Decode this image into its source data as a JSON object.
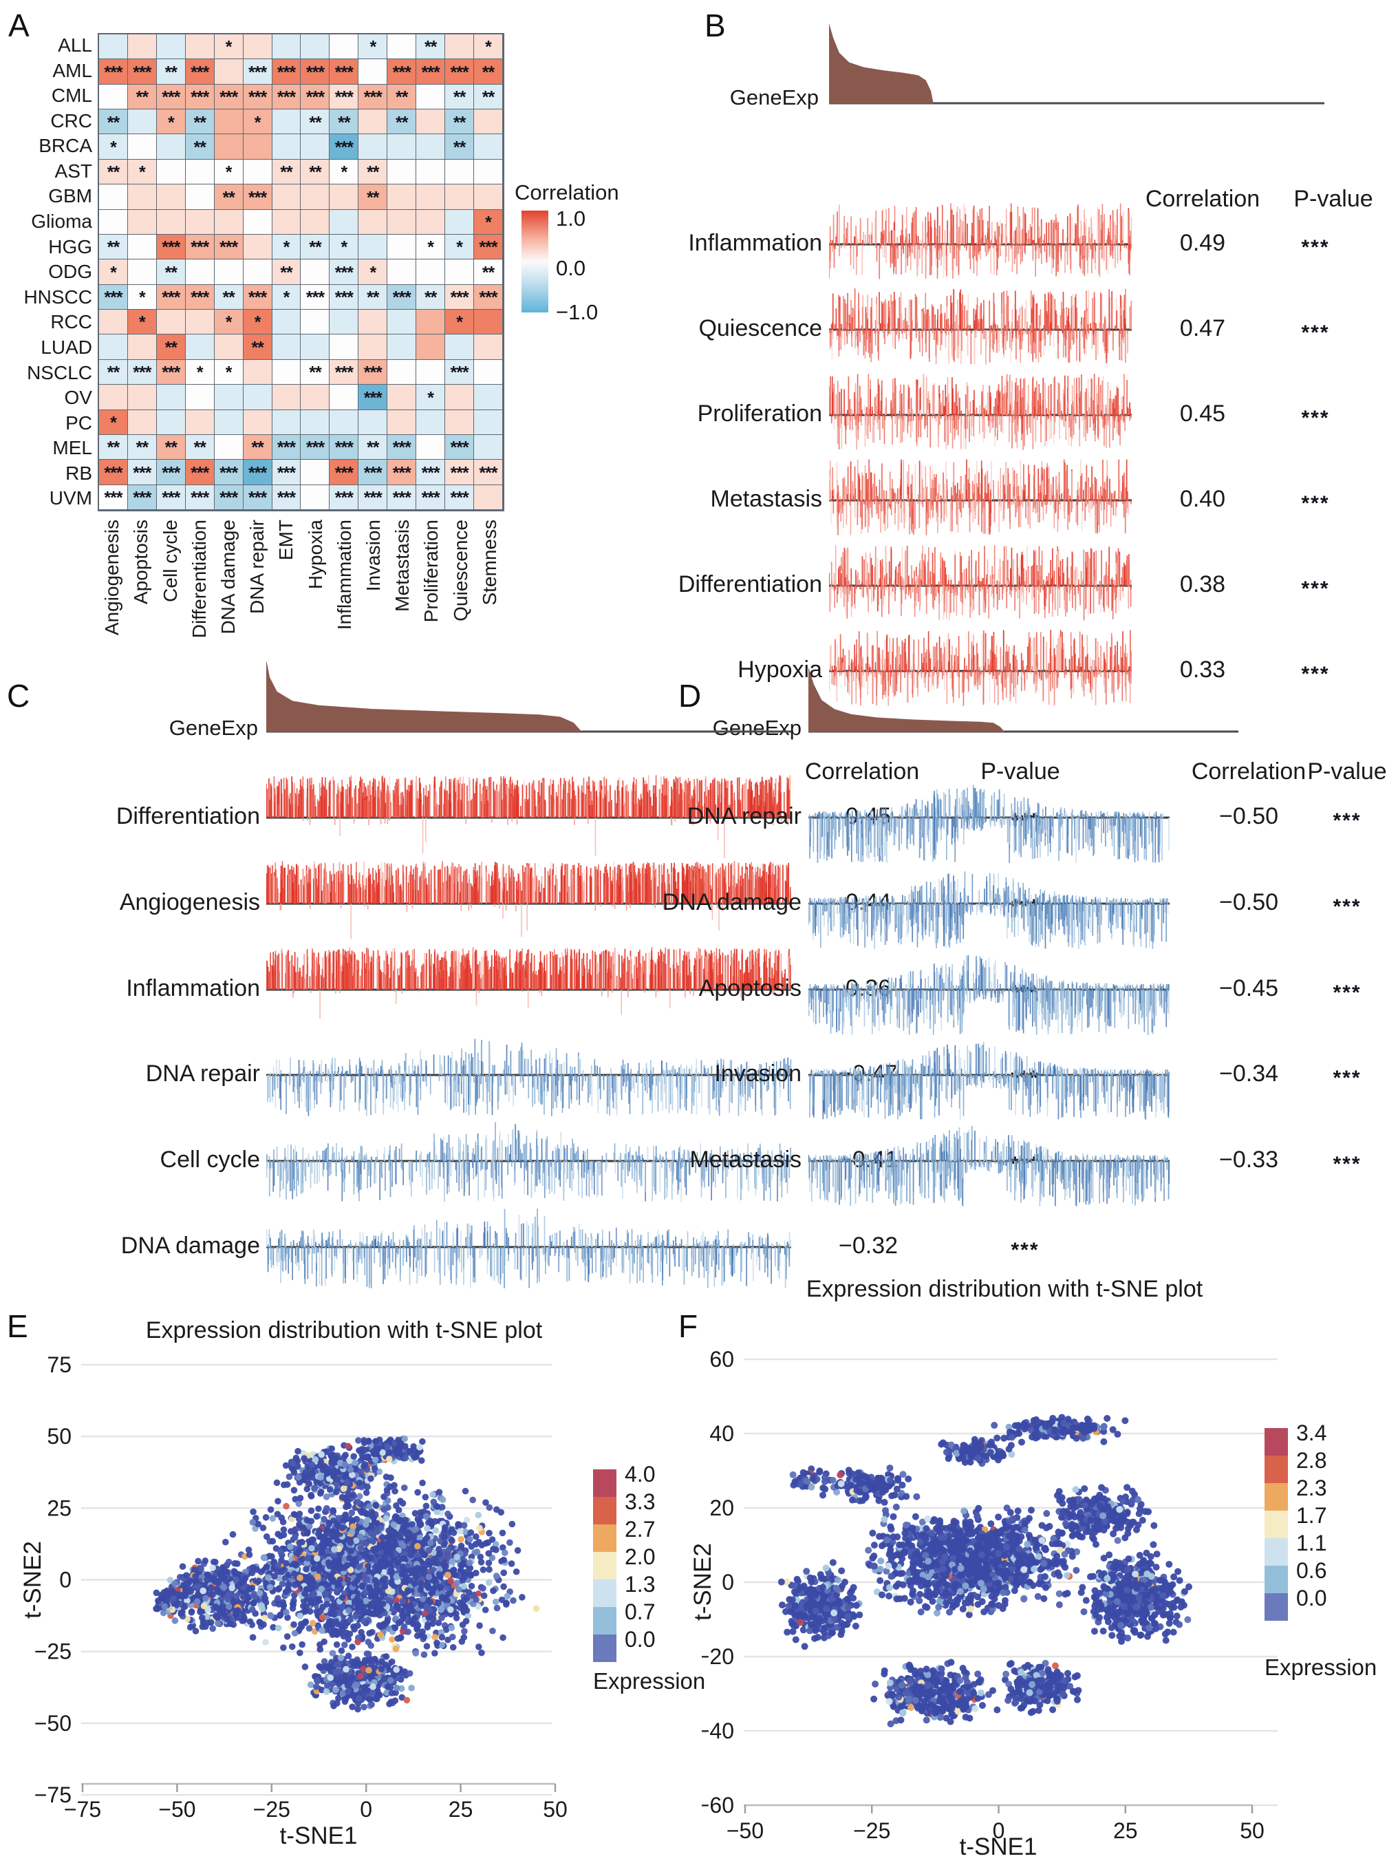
{
  "figure": {
    "panel_letters": [
      "A",
      "B",
      "C",
      "D",
      "E",
      "F"
    ]
  },
  "chart_data": {
    "A": {
      "type": "heatmap",
      "legend": {
        "title": "Correlation",
        "max": "1.0",
        "mid": "0.0",
        "min": "−1.0"
      },
      "significance_codes": [
        "*",
        "**",
        "***"
      ],
      "cell_categories": {
        "sr": "strong positive",
        "mr": "moderate positive",
        "lr": "weak positive",
        "w": "near zero",
        "lb": "weak negative",
        "mb": "moderate negative",
        "sb": "strong negative"
      },
      "cell_colors": {
        "sr": "#ef8063",
        "mr": "#f6b39d",
        "lr": "#fbded4",
        "w": "#fdfdfd",
        "lb": "#dcecf4",
        "mb": "#b0d6e6",
        "sb": "#6db5d5"
      },
      "rows": [
        "ALL",
        "AML",
        "CML",
        "CRC",
        "BRCA",
        "AST",
        "GBM",
        "Glioma",
        "HGG",
        "ODG",
        "HNSCC",
        "RCC",
        "LUAD",
        "NSCLC",
        "OV",
        "PC",
        "MEL",
        "RB",
        "UVM"
      ],
      "cols": [
        "Angiogenesis",
        "Apoptosis",
        "Cell cycle",
        "Differentiation",
        "DNA damage",
        "DNA repair",
        "EMT",
        "Hypoxia",
        "Inflammation",
        "Invasion",
        "Metastasis",
        "Proliferation",
        "Quiescence",
        "Stemness"
      ],
      "cells": [
        [
          "lb",
          "lr",
          "lb",
          "lr",
          "lr*",
          "lr",
          "lb",
          "lb",
          "w",
          "lb*",
          "w",
          "lb**",
          "lr",
          "lr*"
        ],
        [
          "sr***",
          "sr***",
          "lb**",
          "sr***",
          "lr",
          "lb***",
          "sr***",
          "sr***",
          "sr***",
          "w",
          "sr***",
          "sr***",
          "sr***",
          "sr**"
        ],
        [
          "w",
          "mr**",
          "mr***",
          "mr***",
          "mr***",
          "mr***",
          "mr***",
          "mr***",
          "lr***",
          "mr***",
          "mr**",
          "w",
          "lb**",
          "lb**"
        ],
        [
          "mb**",
          "lb",
          "mr*",
          "mb**",
          "mr",
          "mr*",
          "lb",
          "lb**",
          "mb**",
          "lr",
          "mb**",
          "lr",
          "mb**",
          "lr"
        ],
        [
          "lb*",
          "w",
          "lb",
          "mb**",
          "mr",
          "mr",
          "lb",
          "lb",
          "sb***",
          "lb",
          "lb",
          "lb",
          "mb**",
          "lb"
        ],
        [
          "lr**",
          "lr*",
          "w",
          "w",
          "w*",
          "w",
          "lr**",
          "lr**",
          "w*",
          "lr**",
          "w",
          "w",
          "w",
          "w"
        ],
        [
          "w",
          "lr",
          "lr",
          "w",
          "mr**",
          "mr***",
          "lr",
          "lr",
          "lr",
          "mr**",
          "lr",
          "lr",
          "lr",
          "lr"
        ],
        [
          "w",
          "lr",
          "lr",
          "lr",
          "lr",
          "w",
          "lr",
          "lr",
          "lb",
          "lr",
          "lr",
          "lr",
          "lb",
          "sr*"
        ],
        [
          "lb**",
          "w",
          "sr***",
          "mr***",
          "mr***",
          "lr",
          "lb*",
          "lb**",
          "lb*",
          "lb",
          "w",
          "w*",
          "lb*",
          "sr***"
        ],
        [
          "lr*",
          "w",
          "lb**",
          "w",
          "w",
          "w",
          "lr**",
          "w",
          "lb***",
          "lr*",
          "w",
          "w",
          "w",
          "w**"
        ],
        [
          "mb***",
          "w*",
          "mr***",
          "mr***",
          "lb**",
          "mr***",
          "lb*",
          "w***",
          "lb***",
          "lb**",
          "mb***",
          "lb**",
          "lr***",
          "mr***"
        ],
        [
          "lr",
          "sr*",
          "lr",
          "lr",
          "mr*",
          "sr*",
          "lb",
          "w",
          "lb",
          "lr",
          "lb",
          "mr",
          "sr*",
          "sr"
        ],
        [
          "lb",
          "lr",
          "sr**",
          "lb",
          "lr",
          "sr**",
          "lb",
          "lb",
          "w",
          "lr",
          "lb",
          "mr",
          "lb",
          "lr"
        ],
        [
          "lb**",
          "lb***",
          "mr***",
          "w*",
          "w*",
          "lr",
          "w",
          "w**",
          "lr***",
          "mr***",
          "w",
          "w",
          "lb***",
          "w"
        ],
        [
          "lr",
          "lr",
          "lb",
          "w",
          "lb",
          "lb",
          "lr",
          "lr",
          "w",
          "sb***",
          "lr",
          "lb*",
          "lr",
          "lb"
        ],
        [
          "sr*",
          "lr",
          "lb",
          "lr",
          "lb",
          "lr",
          "lb",
          "lb",
          "lb",
          "lb",
          "lr",
          "lb",
          "lr",
          "lb"
        ],
        [
          "lb**",
          "lb**",
          "mr**",
          "lb**",
          "w",
          "mr**",
          "mb***",
          "mb***",
          "mb***",
          "lb**",
          "mb***",
          "w",
          "mb***",
          "lb"
        ],
        [
          "sr***",
          "lb***",
          "mb***",
          "sr***",
          "mb***",
          "sb***",
          "lb***",
          "w",
          "sr***",
          "mb***",
          "mr***",
          "lb***",
          "lr***",
          "lr***"
        ],
        [
          "w***",
          "mb***",
          "lb***",
          "lb***",
          "mb***",
          "mb***",
          "lb***",
          "w",
          "lb***",
          "lb***",
          "lb***",
          "lb***",
          "lb***",
          "lr"
        ]
      ]
    },
    "B": {
      "type": "correlation-tracks",
      "geneexp_label": "GeneExp",
      "geneexp_color": "#8a594e",
      "header_correlation": "Correlation",
      "header_pvalue": "P-value",
      "curve": {
        "fill_fraction": 0.21,
        "profile": [
          [
            0,
            0.97
          ],
          [
            0.008,
            0.8
          ],
          [
            0.02,
            0.62
          ],
          [
            0.04,
            0.5
          ],
          [
            0.07,
            0.44
          ],
          [
            0.11,
            0.4
          ],
          [
            0.15,
            0.37
          ],
          [
            0.18,
            0.34
          ],
          [
            0.195,
            0.28
          ],
          [
            0.205,
            0.15
          ],
          [
            0.21,
            0
          ]
        ]
      },
      "tracks": [
        {
          "name": "Inflammation",
          "value": "0.49",
          "stars": "***",
          "style": "red_sym_sparse"
        },
        {
          "name": "Quiescence",
          "value": "0.47",
          "stars": "***",
          "style": "red_sym"
        },
        {
          "name": "Proliferation",
          "value": "0.45",
          "stars": "***",
          "style": "red_sym"
        },
        {
          "name": "Metastasis",
          "value": "0.40",
          "stars": "***",
          "style": "red_sym"
        },
        {
          "name": "Differentiation",
          "value": "0.38",
          "stars": "***",
          "style": "red_sym"
        },
        {
          "name": "Hypoxia",
          "value": "0.33",
          "stars": "***",
          "style": "red_sym"
        }
      ]
    },
    "C": {
      "type": "correlation-tracks",
      "geneexp_label": "GeneExp",
      "geneexp_color": "#8a594e",
      "header_correlation": "Correlation",
      "header_pvalue": "P-value",
      "curve": {
        "fill_fraction": 0.6,
        "profile": [
          [
            0,
            0.97
          ],
          [
            0.006,
            0.75
          ],
          [
            0.02,
            0.55
          ],
          [
            0.05,
            0.42
          ],
          [
            0.1,
            0.36
          ],
          [
            0.2,
            0.31
          ],
          [
            0.32,
            0.28
          ],
          [
            0.45,
            0.25
          ],
          [
            0.52,
            0.23
          ],
          [
            0.56,
            0.2
          ],
          [
            0.585,
            0.12
          ],
          [
            0.6,
            0
          ]
        ]
      },
      "tracks": [
        {
          "name": "Differentiation",
          "value": "0.45",
          "stars": "***",
          "style": "red_solid"
        },
        {
          "name": "Angiogenesis",
          "value": "0.44",
          "stars": "***",
          "style": "red_solid"
        },
        {
          "name": "Inflammation",
          "value": "0.36",
          "stars": "***",
          "style": "red_solid"
        },
        {
          "name": "DNA repair",
          "value": "−0.47",
          "stars": "***",
          "style": "blue_c"
        },
        {
          "name": "Cell cycle",
          "value": "−0.41",
          "stars": "***",
          "style": "blue_c"
        },
        {
          "name": "DNA damage",
          "value": "−0.32",
          "stars": "***",
          "style": "blue_c"
        }
      ]
    },
    "D": {
      "type": "correlation-tracks",
      "geneexp_label": "GeneExp",
      "geneexp_color": "#8a594e",
      "header_correlation": "Correlation",
      "header_pvalue": "P-value",
      "curve": {
        "fill_fraction": 0.455,
        "profile": [
          [
            0,
            0.97
          ],
          [
            0.012,
            0.72
          ],
          [
            0.03,
            0.48
          ],
          [
            0.06,
            0.34
          ],
          [
            0.1,
            0.26
          ],
          [
            0.16,
            0.21
          ],
          [
            0.24,
            0.18
          ],
          [
            0.32,
            0.16
          ],
          [
            0.4,
            0.145
          ],
          [
            0.43,
            0.13
          ],
          [
            0.445,
            0.07
          ],
          [
            0.455,
            0
          ]
        ]
      },
      "tracks": [
        {
          "name": "DNA repair",
          "value": "−0.50",
          "stars": "***",
          "style": "blue_d"
        },
        {
          "name": "DNA damage",
          "value": "−0.50",
          "stars": "***",
          "style": "blue_d"
        },
        {
          "name": "Apoptosis",
          "value": "−0.45",
          "stars": "***",
          "style": "blue_d"
        },
        {
          "name": "Invasion",
          "value": "−0.34",
          "stars": "***",
          "style": "blue_d"
        },
        {
          "name": "Metastasis",
          "value": "−0.33",
          "stars": "***",
          "style": "blue_d"
        }
      ]
    },
    "E": {
      "type": "scatter",
      "title": "Expression distribution with t-SNE plot",
      "xlabel": "t-SNE1",
      "ylabel": "t-SNE2",
      "xticks": [
        "−75",
        "−50",
        "−25",
        "0",
        "25",
        "50"
      ],
      "yticks": [
        "75",
        "50",
        "25",
        "0",
        "−25",
        "−50",
        "−75"
      ],
      "xlim": [
        -75,
        50
      ],
      "ylim": [
        -75,
        75
      ],
      "legend": {
        "title": "Expression",
        "labels": [
          "4.0",
          "3.3",
          "2.7",
          "2.0",
          "1.3",
          "0.7",
          "0.0"
        ],
        "colors": [
          "#b8485e",
          "#d8624a",
          "#eda95f",
          "#f5ecc4",
          "#cde2ee",
          "#94bfdb",
          "#6b79bd"
        ]
      },
      "point_palette": [
        [
          "#3b4aa5",
          62
        ],
        [
          "#4d5cb0",
          14
        ],
        [
          "#6e86c5",
          7
        ],
        [
          "#86a8d2",
          6
        ],
        [
          "#a9cadf",
          4
        ],
        [
          "#cde2ee",
          3
        ],
        [
          "#f0e6b4",
          1.5
        ],
        [
          "#eda95f",
          1.2
        ],
        [
          "#d8624a",
          0.8
        ],
        [
          "#b8485e",
          0.5
        ]
      ],
      "clusters": [
        {
          "cx": 2,
          "cy": 3,
          "rx": 38,
          "ry": 30,
          "n": 2400
        },
        {
          "cx": -40,
          "cy": -5,
          "rx": 14,
          "ry": 13,
          "n": 500
        },
        {
          "cx": -8,
          "cy": 38,
          "rx": 15,
          "ry": 9,
          "n": 320
        },
        {
          "cx": 6,
          "cy": 45,
          "rx": 10,
          "ry": 5,
          "n": 130
        },
        {
          "cx": -2,
          "cy": -35,
          "rx": 15,
          "ry": 10,
          "n": 420
        },
        {
          "cx": -52,
          "cy": -8,
          "rx": 5,
          "ry": 6,
          "n": 90
        }
      ],
      "outliers": [
        {
          "x": 45,
          "y": -10,
          "c": "#f0e3a0"
        }
      ]
    },
    "F": {
      "type": "scatter",
      "title": "Expression distribution with t-SNE plot",
      "xlabel": "t-SNE1",
      "ylabel": "t-SNE2",
      "xticks": [
        "−50",
        "−25",
        "0",
        "25",
        "50"
      ],
      "yticks": [
        "60",
        "40",
        "20",
        "0",
        "−20",
        "−40",
        "−60"
      ],
      "xlim": [
        -50,
        50
      ],
      "ylim": [
        -60,
        60
      ],
      "legend": {
        "title": "Expression",
        "labels": [
          "3.4",
          "2.8",
          "2.3",
          "1.7",
          "1.1",
          "0.6",
          "0.0"
        ],
        "colors": [
          "#b8485e",
          "#d8624a",
          "#eda95f",
          "#f5ecc4",
          "#cde2ee",
          "#94bfdb",
          "#6b79bd"
        ]
      },
      "point_palette": [
        [
          "#3b4aa5",
          74
        ],
        [
          "#4d5cb0",
          12
        ],
        [
          "#5f74ba",
          5
        ],
        [
          "#86a8d2",
          4
        ],
        [
          "#a9cadf",
          2.5
        ],
        [
          "#cde2ee",
          1
        ],
        [
          "#f0e6b4",
          0.5
        ],
        [
          "#eda95f",
          0.4
        ],
        [
          "#d8624a",
          0.4
        ],
        [
          "#b8485e",
          0.2
        ]
      ],
      "clusters": [
        {
          "cx": 12,
          "cy": 41,
          "rx": 13,
          "ry": 3.5,
          "n": 170
        },
        {
          "cx": -4,
          "cy": 35,
          "rx": 8,
          "ry": 4,
          "n": 110
        },
        {
          "cx": -26,
          "cy": 26,
          "rx": 10,
          "ry": 5,
          "n": 150
        },
        {
          "cx": -35,
          "cy": -6,
          "rx": 8,
          "ry": 11,
          "n": 340
        },
        {
          "cx": -6,
          "cy": 6,
          "rx": 21,
          "ry": 15,
          "n": 1250
        },
        {
          "cx": 27,
          "cy": -4,
          "rx": 11,
          "ry": 13,
          "n": 480
        },
        {
          "cx": -13,
          "cy": -30,
          "rx": 12,
          "ry": 9,
          "n": 420
        },
        {
          "cx": 8,
          "cy": -28,
          "rx": 8,
          "ry": 7,
          "n": 240
        },
        {
          "cx": -38,
          "cy": 28,
          "rx": 4,
          "ry": 3,
          "n": 45
        },
        {
          "cx": 20,
          "cy": 18,
          "rx": 10,
          "ry": 8,
          "n": 260
        }
      ],
      "outliers": []
    }
  }
}
